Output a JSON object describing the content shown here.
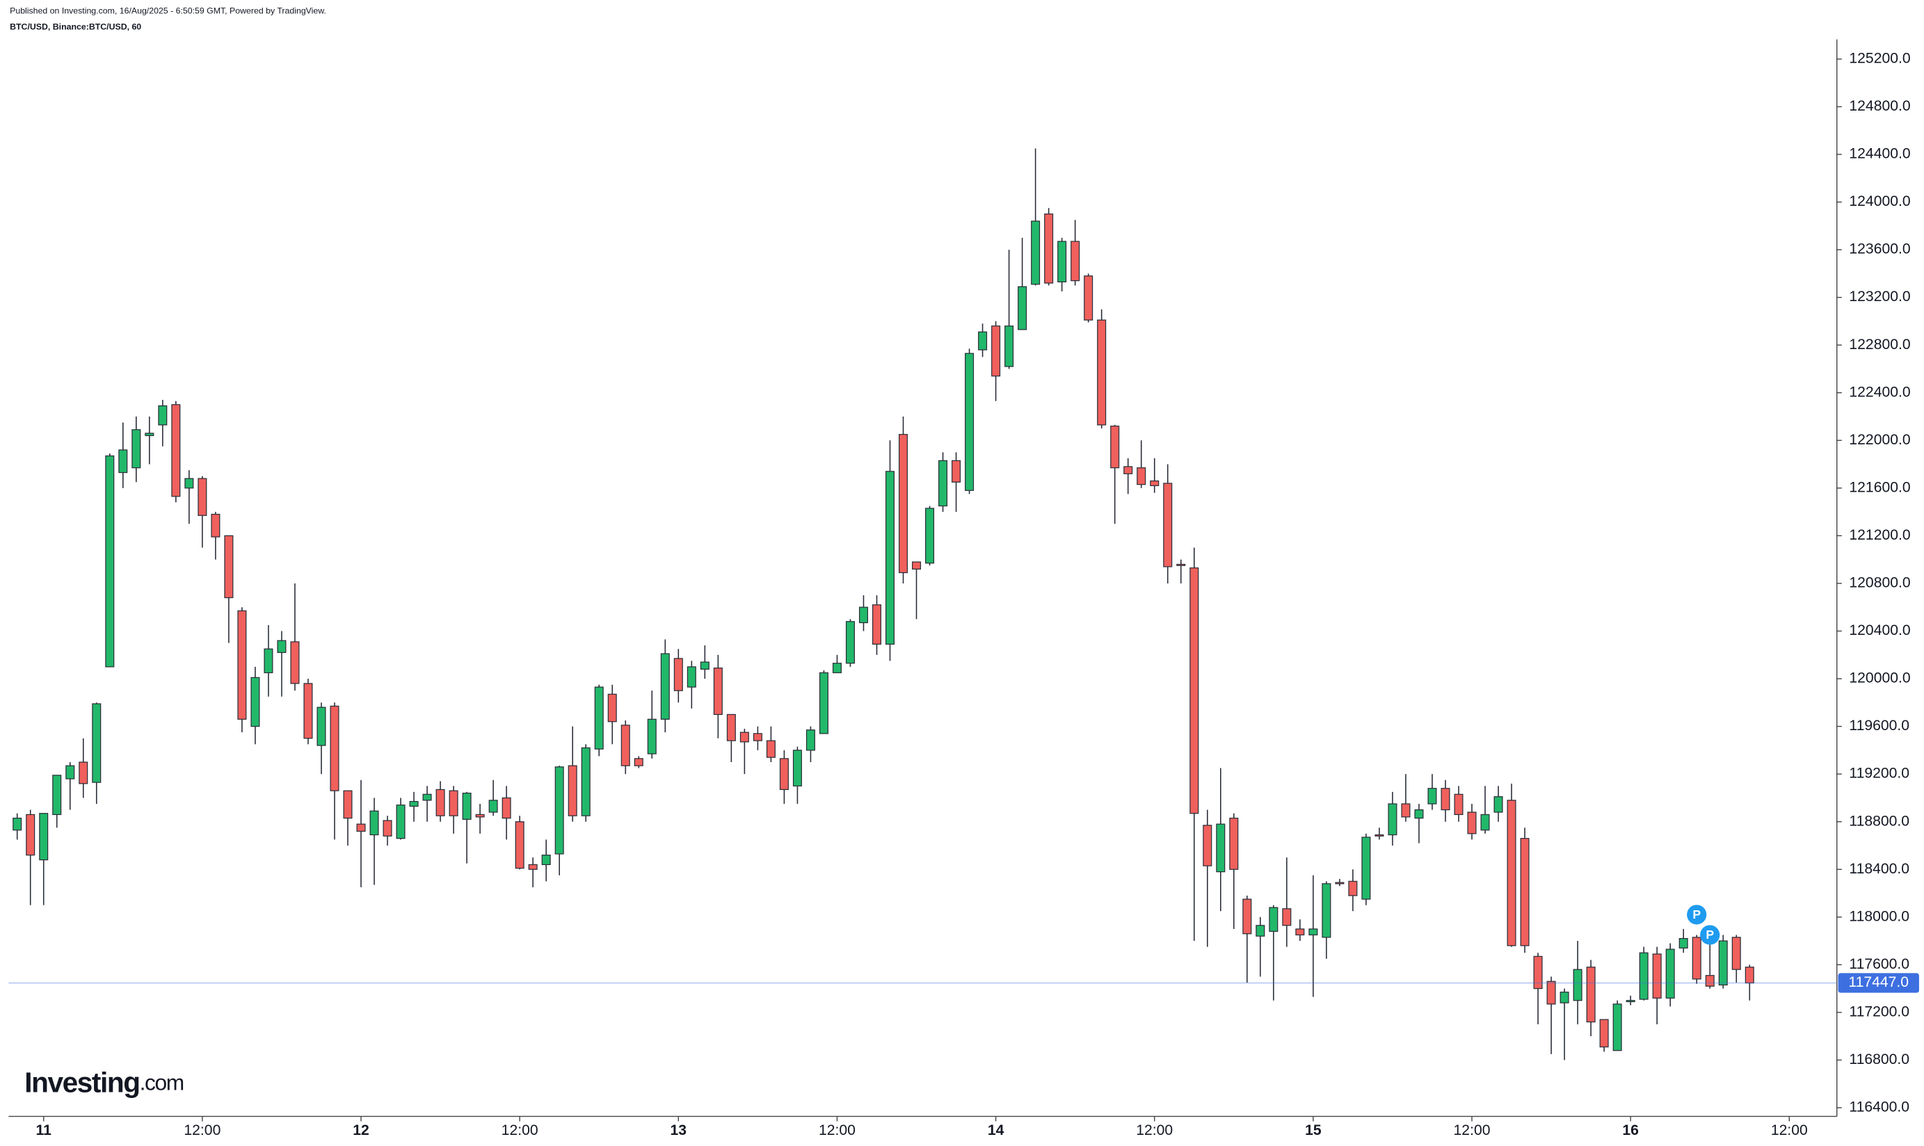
{
  "chart_data": {
    "type": "candlestick",
    "header": "Published on Investing.com, 16/Aug/2025 - 6:50:59 GMT, Powered by TradingView.",
    "title": "BTC/USD, Binance:BTC/USD, 60",
    "logo": "Investing",
    "logo_suffix": ".com",
    "up_color": "#22b86a",
    "down_color": "#f0605c",
    "last_price": 117447,
    "last_price_label": "117447.0",
    "last_price_color": "#3d6fe0",
    "xlim": [
      -2.65,
      135.6
    ],
    "ylim": [
      116327,
      125365
    ],
    "xticks": [
      {
        "value": 0,
        "label": "11"
      },
      {
        "value": 12,
        "label": "12:00"
      },
      {
        "value": 24,
        "label": "12"
      },
      {
        "value": 36,
        "label": "12:00"
      },
      {
        "value": 48,
        "label": "13"
      },
      {
        "value": 60,
        "label": "12:00"
      },
      {
        "value": 72,
        "label": "14"
      },
      {
        "value": 84,
        "label": "12:00"
      },
      {
        "value": 96,
        "label": "15"
      },
      {
        "value": 108,
        "label": "12:00"
      },
      {
        "value": 120,
        "label": "16"
      },
      {
        "value": 132,
        "label": "12:00"
      }
    ],
    "yticks": [
      {
        "value": 116400,
        "label": "116400.0"
      },
      {
        "value": 116800,
        "label": "116800.0"
      },
      {
        "value": 117200,
        "label": "117200.0"
      },
      {
        "value": 117600,
        "label": "117600.0"
      },
      {
        "value": 118000,
        "label": "118000.0"
      },
      {
        "value": 118400,
        "label": "118400.0"
      },
      {
        "value": 118800,
        "label": "118800.0"
      },
      {
        "value": 119200,
        "label": "119200.0"
      },
      {
        "value": 119600,
        "label": "119600.0"
      },
      {
        "value": 120000,
        "label": "120000.0"
      },
      {
        "value": 120400,
        "label": "120400.0"
      },
      {
        "value": 120800,
        "label": "120800.0"
      },
      {
        "value": 121200,
        "label": "121200.0"
      },
      {
        "value": 121600,
        "label": "121600.0"
      },
      {
        "value": 122000,
        "label": "122000.0"
      },
      {
        "value": 122400,
        "label": "122400.0"
      },
      {
        "value": 122800,
        "label": "122800.0"
      },
      {
        "value": 123200,
        "label": "123200.0"
      },
      {
        "value": 123600,
        "label": "123600.0"
      },
      {
        "value": 124000,
        "label": "124000.0"
      },
      {
        "value": 124400,
        "label": "124400.0"
      },
      {
        "value": 124800,
        "label": "124800.0"
      },
      {
        "value": 125200,
        "label": "125200.0"
      }
    ],
    "annotations": [
      {
        "text": "P",
        "x": 125,
        "y": 118020
      },
      {
        "text": "P",
        "x": 126,
        "y": 117850
      }
    ],
    "x": [
      -2,
      -1,
      0,
      1,
      2,
      3,
      4,
      5,
      6,
      7,
      8,
      9,
      10,
      11,
      12,
      13,
      14,
      15,
      16,
      17,
      18,
      19,
      20,
      21,
      22,
      23,
      24,
      25,
      26,
      27,
      28,
      29,
      30,
      31,
      32,
      33,
      34,
      35,
      36,
      37,
      38,
      39,
      40,
      41,
      42,
      43,
      44,
      45,
      46,
      47,
      48,
      49,
      50,
      51,
      52,
      53,
      54,
      55,
      56,
      57,
      58,
      59,
      60,
      61,
      62,
      63,
      64,
      65,
      66,
      67,
      68,
      69,
      70,
      71,
      72,
      73,
      74,
      75,
      76,
      77,
      78,
      79,
      80,
      81,
      82,
      83,
      84,
      85,
      86,
      87,
      88,
      89,
      90,
      91,
      92,
      93,
      94,
      95,
      96,
      97,
      98,
      99,
      100,
      101,
      102,
      103,
      104,
      105,
      106,
      107,
      108,
      109,
      110,
      111,
      112,
      113,
      114,
      115,
      116,
      117,
      118,
      119,
      120,
      121,
      122,
      123,
      124,
      125,
      126,
      127,
      128,
      129
    ],
    "open": [
      118730,
      118860,
      118480,
      118860,
      119160,
      119300,
      119130,
      120100,
      121730,
      121770,
      122040,
      122130,
      122300,
      121600,
      121680,
      121380,
      121200,
      120570,
      119600,
      120050,
      120220,
      120310,
      119960,
      119440,
      119770,
      119060,
      118780,
      118690,
      118810,
      118660,
      118930,
      118980,
      119070,
      119060,
      118820,
      118860,
      118880,
      119000,
      118800,
      118440,
      118440,
      118530,
      119270,
      118850,
      119410,
      119870,
      119610,
      119330,
      119370,
      119660,
      120170,
      119930,
      120080,
      120090,
      119700,
      119550,
      119540,
      119480,
      119330,
      119100,
      119400,
      119540,
      120050,
      120130,
      120470,
      120620,
      120290,
      122050,
      120980,
      120970,
      121450,
      121830,
      121580,
      122760,
      122960,
      122620,
      122930,
      123310,
      123900,
      123330,
      123670,
      123380,
      123010,
      122120,
      121780,
      121770,
      121660,
      121640,
      120960,
      120930,
      118770,
      118380,
      118830,
      118150,
      117840,
      117880,
      118070,
      117900,
      117850,
      117830,
      118290,
      118300,
      118150,
      118690,
      118690,
      118950,
      118830,
      118950,
      119080,
      119030,
      118880,
      118730,
      118880,
      118980,
      118660,
      117670,
      117460,
      117280,
      117300,
      117580,
      117140,
      116880,
      117290,
      117310,
      117690,
      117320,
      117740,
      117830,
      117510,
      117430,
      117830,
      117580
    ],
    "high": [
      118870,
      118900,
      118870,
      119190,
      119300,
      119500,
      119800,
      121890,
      122150,
      122200,
      122200,
      122340,
      122330,
      121750,
      121700,
      121400,
      121200,
      120600,
      120100,
      120450,
      120400,
      120800,
      120000,
      119800,
      119800,
      119060,
      119150,
      119000,
      118850,
      119000,
      119050,
      119100,
      119140,
      119100,
      119050,
      118950,
      119150,
      119100,
      118850,
      118500,
      118650,
      119270,
      119600,
      119450,
      119950,
      119950,
      119650,
      119350,
      119900,
      120330,
      120250,
      120150,
      120280,
      120200,
      119700,
      119580,
      119600,
      119600,
      119400,
      119430,
      119600,
      120070,
      120200,
      120500,
      120700,
      120700,
      122000,
      122200,
      120980,
      121450,
      121900,
      121900,
      122770,
      122980,
      123000,
      123600,
      123700,
      124450,
      123950,
      123700,
      123850,
      123400,
      123100,
      122130,
      121850,
      122000,
      121850,
      121800,
      121000,
      121100,
      118900,
      119250,
      118870,
      118180,
      118000,
      118100,
      118500,
      117980,
      118350,
      118300,
      118320,
      118400,
      118700,
      118750,
      119050,
      119200,
      118950,
      119200,
      119150,
      119100,
      118950,
      119100,
      119100,
      119120,
      118750,
      117700,
      117500,
      117400,
      117800,
      117640,
      117140,
      117300,
      117340,
      117750,
      117750,
      117780,
      117900,
      117850,
      117800,
      117850,
      117850,
      117600
    ],
    "low": [
      118650,
      118100,
      118100,
      118750,
      118900,
      119000,
      118950,
      120100,
      121600,
      121650,
      121800,
      121950,
      121480,
      121300,
      121100,
      121000,
      120300,
      119550,
      119450,
      119850,
      119850,
      119900,
      119450,
      119200,
      118650,
      118600,
      118250,
      118270,
      118600,
      118650,
      118800,
      118800,
      118800,
      118700,
      118450,
      118700,
      118850,
      118650,
      118400,
      118250,
      118300,
      118350,
      118800,
      118800,
      119350,
      119450,
      119200,
      119250,
      119330,
      119550,
      119800,
      119750,
      120000,
      119500,
      119300,
      119200,
      119400,
      119300,
      118950,
      118950,
      119300,
      119550,
      120050,
      120100,
      120400,
      120200,
      120150,
      120800,
      120500,
      120950,
      121400,
      121400,
      121550,
      122700,
      122330,
      122600,
      122930,
      123300,
      123300,
      123250,
      123300,
      122990,
      122100,
      121300,
      121550,
      121600,
      121560,
      120800,
      120800,
      117800,
      117750,
      118050,
      117900,
      117450,
      117500,
      117300,
      117750,
      117800,
      117330,
      117650,
      118260,
      118050,
      118100,
      118650,
      118600,
      118800,
      118620,
      118900,
      118800,
      118800,
      118650,
      118700,
      118800,
      117750,
      117700,
      117100,
      116850,
      116800,
      117100,
      117000,
      116870,
      116880,
      117260,
      117300,
      117100,
      117250,
      117700,
      117440,
      117400,
      117400,
      117450,
      117300
    ],
    "close": [
      118830,
      118520,
      118870,
      119190,
      119270,
      119120,
      119790,
      121870,
      121920,
      122090,
      122060,
      122290,
      121530,
      121680,
      121370,
      121190,
      120680,
      119660,
      120010,
      120250,
      120320,
      119960,
      119500,
      119760,
      119060,
      118830,
      118720,
      118890,
      118680,
      118940,
      118970,
      119030,
      118850,
      118850,
      119040,
      118840,
      118980,
      118830,
      118410,
      118400,
      118520,
      119260,
      118850,
      119420,
      119930,
      119640,
      119270,
      119270,
      119660,
      120210,
      119900,
      120100,
      120140,
      119700,
      119480,
      119470,
      119480,
      119340,
      119070,
      119400,
      119570,
      120050,
      120130,
      120480,
      120600,
      120290,
      121740,
      120890,
      120920,
      121430,
      121830,
      121650,
      122730,
      122910,
      122540,
      122960,
      123290,
      123840,
      123320,
      123670,
      123340,
      123010,
      122130,
      121770,
      121720,
      121630,
      121620,
      120940,
      120950,
      118870,
      118430,
      118780,
      118400,
      117860,
      117930,
      118080,
      117930,
      117850,
      117900,
      118280,
      118280,
      118180,
      118670,
      118680,
      118950,
      118840,
      118900,
      119080,
      118900,
      118860,
      118700,
      118860,
      119010,
      117760,
      117760,
      117400,
      117270,
      117370,
      117560,
      117120,
      116910,
      117270,
      117300,
      117700,
      117320,
      117730,
      117820,
      117480,
      117420,
      117800,
      117560,
      117447
    ]
  }
}
